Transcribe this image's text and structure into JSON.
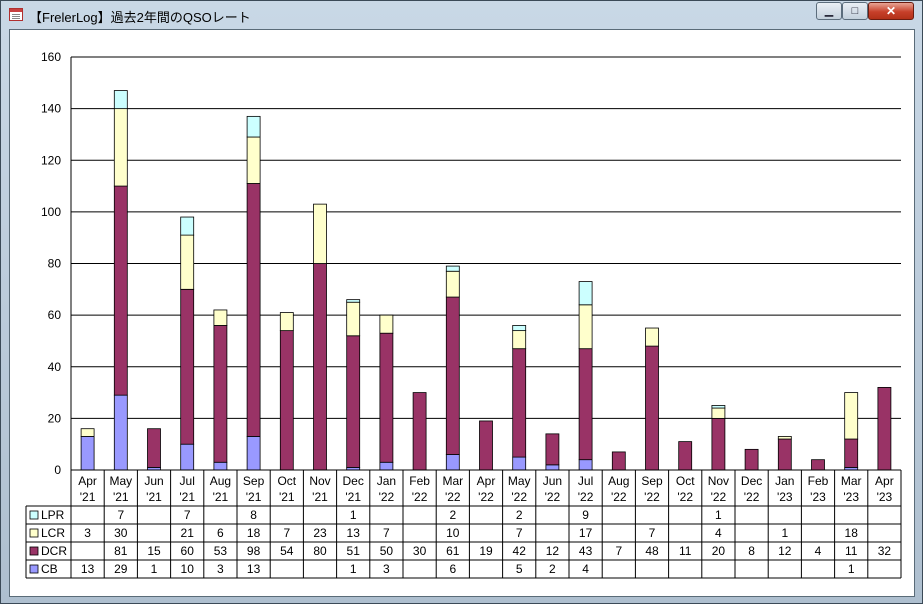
{
  "window": {
    "title": "【FrelerLog】過去2年間のQSOレート",
    "minimize_icon": "minimize-icon",
    "maximize_icon": "maximize-icon",
    "close_icon": "close-icon"
  },
  "chart_data": {
    "type": "bar",
    "stacked": true,
    "categories": [
      [
        "Apr",
        "'21"
      ],
      [
        "May",
        "'21"
      ],
      [
        "Jun",
        "'21"
      ],
      [
        "Jul",
        "'21"
      ],
      [
        "Aug",
        "'21"
      ],
      [
        "Sep",
        "'21"
      ],
      [
        "Oct",
        "'21"
      ],
      [
        "Nov",
        "'21"
      ],
      [
        "Dec",
        "'21"
      ],
      [
        "Jan",
        "'22"
      ],
      [
        "Feb",
        "'22"
      ],
      [
        "Mar",
        "'22"
      ],
      [
        "Apr",
        "'22"
      ],
      [
        "May",
        "'22"
      ],
      [
        "Jun",
        "'22"
      ],
      [
        "Jul",
        "'22"
      ],
      [
        "Aug",
        "'22"
      ],
      [
        "Sep",
        "'22"
      ],
      [
        "Oct",
        "'22"
      ],
      [
        "Nov",
        "'22"
      ],
      [
        "Dec",
        "'22"
      ],
      [
        "Jan",
        "'23"
      ],
      [
        "Feb",
        "'23"
      ],
      [
        "Mar",
        "'23"
      ],
      [
        "Apr",
        "'23"
      ]
    ],
    "series": [
      {
        "name": "CB",
        "color": "#9999ff",
        "values": [
          13,
          29,
          1,
          10,
          3,
          13,
          null,
          null,
          1,
          3,
          null,
          6,
          null,
          5,
          2,
          4,
          null,
          null,
          null,
          null,
          null,
          null,
          null,
          1,
          null
        ]
      },
      {
        "name": "DCR",
        "color": "#993366",
        "values": [
          null,
          81,
          15,
          60,
          53,
          98,
          54,
          80,
          51,
          50,
          30,
          61,
          19,
          42,
          12,
          43,
          7,
          48,
          11,
          20,
          8,
          12,
          4,
          11,
          32
        ]
      },
      {
        "name": "LCR",
        "color": "#ffffcc",
        "values": [
          3,
          30,
          null,
          21,
          6,
          18,
          7,
          23,
          13,
          7,
          null,
          10,
          null,
          7,
          null,
          17,
          null,
          7,
          null,
          4,
          null,
          1,
          null,
          18,
          null
        ]
      },
      {
        "name": "LPR",
        "color": "#ccffff",
        "values": [
          null,
          7,
          null,
          7,
          null,
          8,
          null,
          null,
          1,
          null,
          null,
          2,
          null,
          2,
          null,
          9,
          null,
          null,
          null,
          1,
          null,
          null,
          null,
          null,
          null
        ]
      }
    ],
    "table_row_order": [
      "LPR",
      "LCR",
      "DCR",
      "CB"
    ],
    "ylim": [
      0,
      160
    ],
    "yticks": [
      0,
      20,
      40,
      60,
      80,
      100,
      120,
      140,
      160
    ],
    "grid": true,
    "title": "",
    "xlabel": "",
    "ylabel": ""
  }
}
